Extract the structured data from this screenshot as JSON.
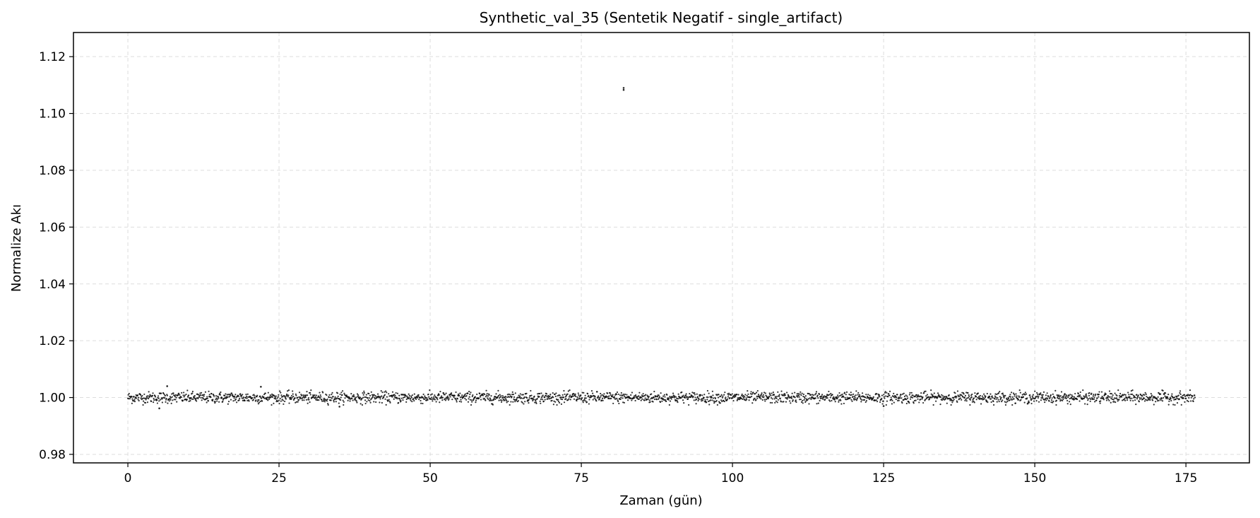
{
  "chart_data": {
    "type": "scatter",
    "title": "Synthetic_val_35 (Sentetik Negatif - single_artifact)",
    "xlabel": "Zaman (gün)",
    "ylabel": "Normalize Akı",
    "xlim": [
      -9,
      185.5
    ],
    "ylim": [
      0.977,
      1.1285
    ],
    "xticks": [
      0,
      25,
      50,
      75,
      100,
      125,
      150,
      175
    ],
    "xtick_labels": [
      "0",
      "25",
      "50",
      "75",
      "100",
      "125",
      "150",
      "175"
    ],
    "yticks": [
      0.98,
      1.0,
      1.02,
      1.04,
      1.06,
      1.08,
      1.1,
      1.12
    ],
    "ytick_labels": [
      "0.98",
      "1.00",
      "1.02",
      "1.04",
      "1.06",
      "1.08",
      "1.10",
      "1.12"
    ],
    "grid": true,
    "legend": "none",
    "marker_color": "#000000",
    "series": [
      {
        "description_of_bulk": "Dense band of about 2600 points spanning x 0 to 176.5 days, normally scattered around y = 1.000 with standard deviation about 0.001",
        "x_range": [
          0,
          176.5
        ],
        "y_center": 1.0,
        "y_noise_sd": 0.001,
        "n_points": 2600,
        "outliers": [
          {
            "x": 82.0,
            "y": 1.1083
          },
          {
            "x": 82.0,
            "y": 1.109
          },
          {
            "x": 6.5,
            "y": 1.004
          },
          {
            "x": 22.0,
            "y": 1.0038
          },
          {
            "x": 5.2,
            "y": 0.9962
          },
          {
            "x": 35.0,
            "y": 0.9968
          },
          {
            "x": 125.0,
            "y": 0.997
          }
        ]
      }
    ]
  }
}
